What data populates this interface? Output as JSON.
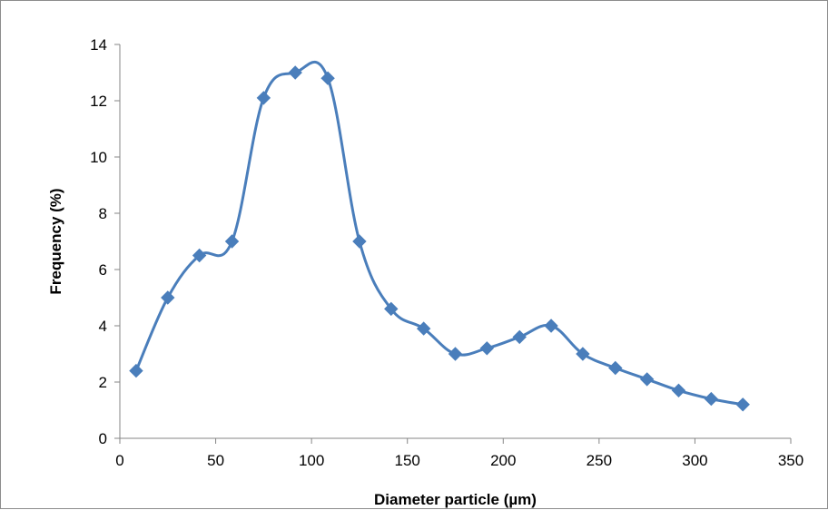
{
  "chart_data": {
    "type": "line",
    "title": "",
    "xlabel": "Diameter particle (µm)",
    "ylabel": "Frequency (%)",
    "xlim": [
      0,
      350
    ],
    "ylim": [
      0,
      14
    ],
    "x_ticks": [
      "0",
      "50",
      "100",
      "150",
      "200",
      "250",
      "300",
      "350"
    ],
    "y_ticks": [
      "0",
      "2",
      "4",
      "6",
      "8",
      "10",
      "12",
      "14"
    ],
    "grid": false,
    "legend": "none",
    "smooth": true,
    "marker": "diamond",
    "color": "#4a7ebb",
    "series": [
      {
        "x": [
          8.5,
          25,
          41.5,
          58.5,
          75,
          91.5,
          108.5,
          125,
          141.5,
          158.5,
          175,
          191.5,
          208.5,
          225,
          241.5,
          258.5,
          275,
          291.5,
          308.5,
          325
        ],
        "y": [
          2.4,
          5.0,
          6.5,
          7.0,
          12.1,
          13.0,
          12.8,
          7.0,
          4.6,
          3.9,
          3.0,
          3.2,
          3.6,
          4.0,
          3.0,
          2.5,
          2.1,
          1.7,
          1.4,
          1.2
        ]
      }
    ]
  }
}
